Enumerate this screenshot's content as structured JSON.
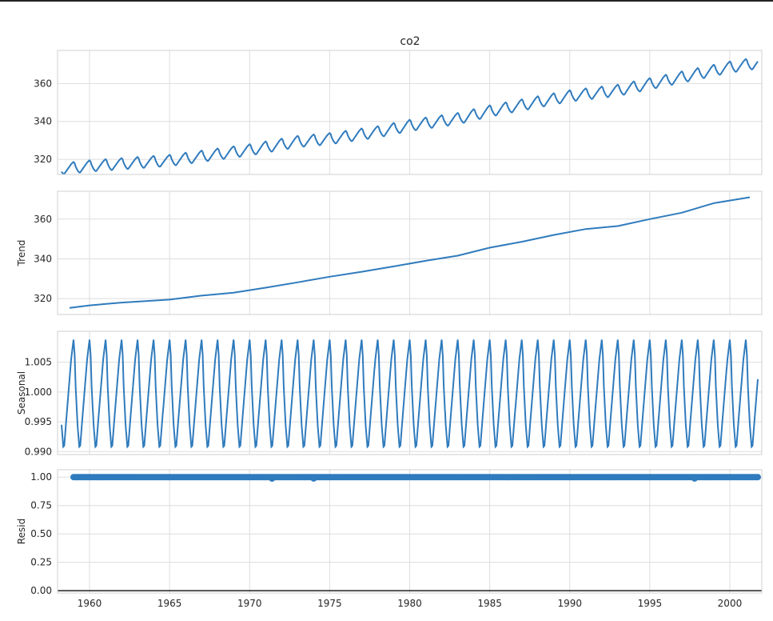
{
  "chart_data": {
    "type": "line",
    "title": "co2",
    "x_range": [
      1958.0,
      2002.0
    ],
    "x_ticks": [
      1960,
      1965,
      1970,
      1975,
      1980,
      1985,
      1990,
      1995,
      2000
    ],
    "x_start": 1958.25,
    "x_end": 2001.75,
    "period_years": 1.0,
    "colors": {
      "line": "#2f7bbd",
      "grid": "#dddddd",
      "frame": "#cfcfcf",
      "zero_line": "#222222"
    },
    "panels": [
      {
        "id": "observed",
        "ylabel": "",
        "ylim": [
          312.0,
          377.5
        ],
        "yticks": [
          320,
          340,
          360
        ],
        "ytick_labels": [
          "320",
          "340",
          "360"
        ],
        "trend": {
          "x": [
            1958.5,
            1960,
            1965,
            1970,
            1973,
            1975,
            1978,
            1980,
            1983,
            1985,
            1988,
            1990,
            1993,
            1995,
            1998,
            2000,
            2001.75
          ],
          "y": [
            315.3,
            316.6,
            319.5,
            325.1,
            329.5,
            331.0,
            334.6,
            338.0,
            341.6,
            345.6,
            350.4,
            353.6,
            356.5,
            360.0,
            365.3,
            368.8,
            371.0
          ]
        },
        "seasonal_amplitude": 3.0,
        "series": [
          {
            "name": "",
            "kind": "observed"
          }
        ]
      },
      {
        "id": "trend",
        "ylabel": "Trend",
        "ylim": [
          312.0,
          374.0
        ],
        "yticks": [
          320,
          340,
          360
        ],
        "ytick_labels": [
          "320",
          "340",
          "360"
        ],
        "series": [
          {
            "name": "",
            "x": [
              1958.75,
              1960,
              1962,
              1965,
              1967,
              1969,
              1971,
              1973,
              1975,
              1977,
              1979,
              1981,
              1983,
              1985,
              1987,
              1989,
              1991,
              1993,
              1995,
              1997,
              1999,
              2001.25
            ],
            "y": [
              315.3,
              316.6,
              318.0,
              319.5,
              321.5,
              323.0,
              325.5,
              328.2,
              331.0,
              333.5,
              336.2,
              339.0,
              341.6,
              345.6,
              348.6,
              352.0,
              355.0,
              356.5,
              360.0,
              363.2,
              368.0,
              371.0
            ]
          }
        ]
      },
      {
        "id": "seasonal",
        "ylabel": "Seasonal",
        "ylim": [
          0.9895,
          1.0102
        ],
        "yticks": [
          0.99,
          0.995,
          1.0,
          1.005
        ],
        "ytick_labels": [
          "0.990",
          "0.995",
          "1.000",
          "1.005"
        ],
        "profile_phase": [
          0.0,
          0.07,
          0.13,
          0.25,
          0.36,
          0.42,
          0.55,
          0.7,
          0.85,
          1.0
        ],
        "profile_values": [
          1.0088,
          1.0062,
          1.001,
          0.9945,
          0.9908,
          0.991,
          0.9955,
          1.0005,
          1.0055,
          1.0088
        ],
        "series": [
          {
            "name": "",
            "kind": "seasonal"
          }
        ]
      },
      {
        "id": "resid",
        "ylabel": "Resid",
        "ylim": [
          -0.02,
          1.065
        ],
        "yticks": [
          0.0,
          0.25,
          0.5,
          0.75,
          1.0
        ],
        "ytick_labels": [
          "0.00",
          "0.25",
          "0.50",
          "0.75",
          "1.00"
        ],
        "resid_value": 1.0,
        "resid_dips": [
          {
            "x": 1971.4,
            "y": 0.993
          },
          {
            "x": 1974.0,
            "y": 0.994
          },
          {
            "x": 1997.8,
            "y": 0.994
          }
        ],
        "zero_line": 0.0,
        "series": [
          {
            "name": "",
            "kind": "resid"
          }
        ]
      }
    ]
  }
}
